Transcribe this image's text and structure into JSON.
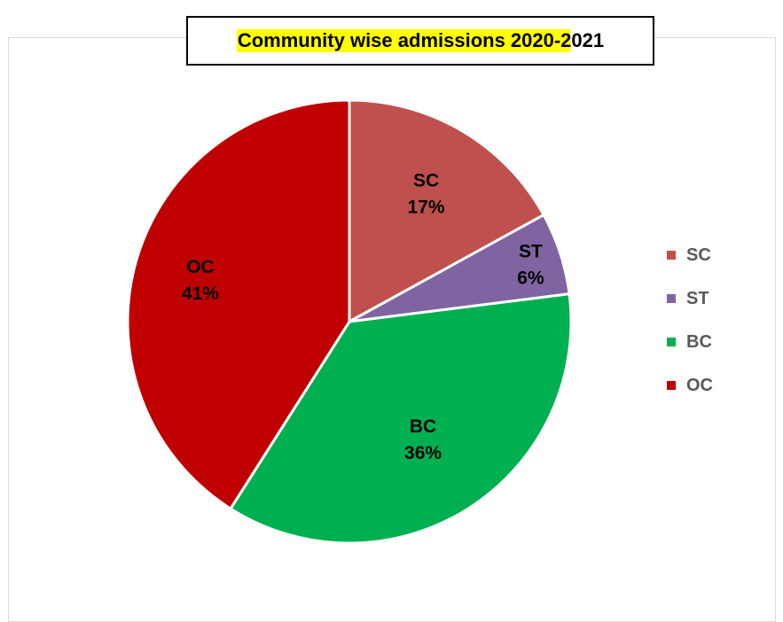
{
  "chart_data": {
    "type": "pie",
    "title": "Community wise admissions 2020-2021",
    "categories": [
      "SC",
      "ST",
      "BC",
      "OC"
    ],
    "values": [
      17,
      6,
      36,
      41
    ],
    "value_suffix": "%",
    "colors": [
      "#c0504d",
      "#8064a2",
      "#00b050",
      "#c00000"
    ],
    "legend_position": "right",
    "slice_labels": [
      {
        "name": "SC",
        "percent": "17%"
      },
      {
        "name": "ST",
        "percent": "6%"
      },
      {
        "name": "BC",
        "percent": "36%"
      },
      {
        "name": "OC",
        "percent": "41%"
      }
    ],
    "legend": [
      {
        "label": "SC",
        "color": "#c0504d"
      },
      {
        "label": "ST",
        "color": "#8064a2"
      },
      {
        "label": "BC",
        "color": "#00b050"
      },
      {
        "label": "OC",
        "color": "#c00000"
      }
    ]
  }
}
